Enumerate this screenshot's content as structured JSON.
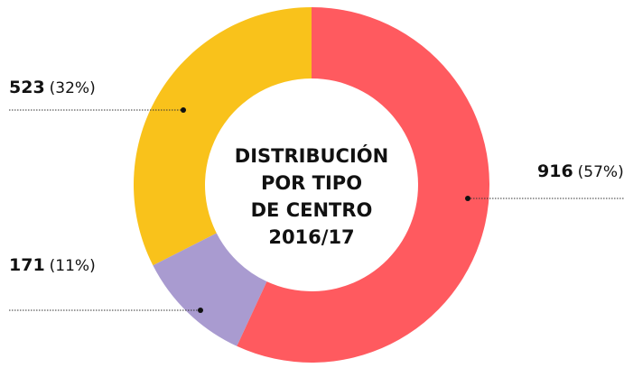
{
  "chart_data": {
    "type": "donut",
    "title": [
      "DISTRIBUCIÓN",
      "POR TIPO",
      "DE CENTRO",
      "2016/17"
    ],
    "categories": [
      null,
      null,
      null
    ],
    "values": [
      916,
      171,
      523
    ],
    "percent_labels": [
      "(57%)",
      "(11%)",
      "(32%)"
    ],
    "colors": [
      "#ff5a5f",
      "#a99bd0",
      "#f9c21b"
    ]
  }
}
